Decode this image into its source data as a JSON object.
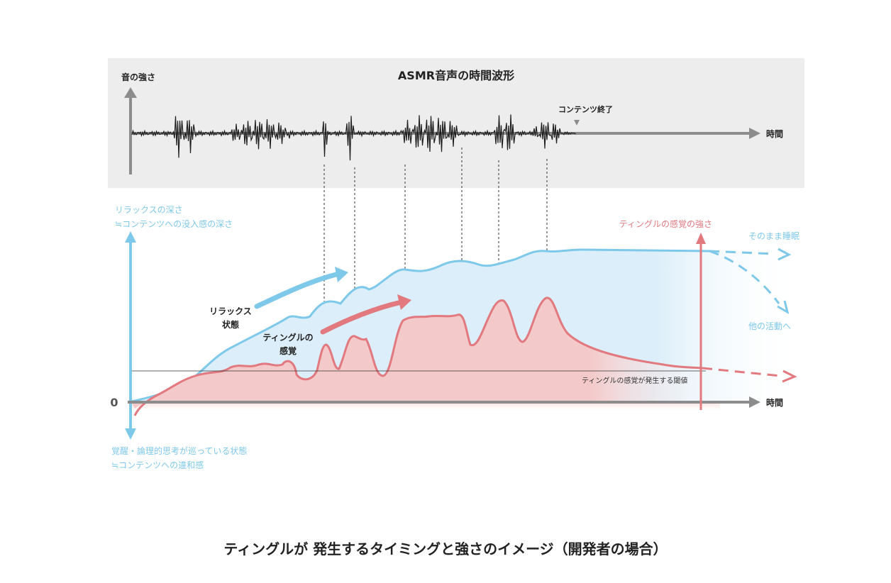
{
  "waveform": {
    "title": "ASMR音声の時間波形",
    "y_label": "音の強さ",
    "x_label": "時間",
    "end_label": "コンテンツ終了"
  },
  "main": {
    "top_axis_label_1": "リラックスの深さ",
    "top_axis_label_2": "≒コンテンツへの没入感の深さ",
    "bottom_axis_label_1": "覚醒・論理的思考が巡っている状態",
    "bottom_axis_label_2": "≒コンテンツへの違和感",
    "zero_label": "0",
    "x_label": "時間",
    "relax_state_1": "リラックス",
    "relax_state_2": "状態",
    "tingle_state_1": "ティングルの",
    "tingle_state_2": "感覚",
    "tingle_strength_label": "ティングルの感覚の強さ",
    "sleep_label": "そのまま睡眠",
    "other_activity_label": "他の活動へ",
    "threshold_label": "ティングルの感覚が発生する閾値"
  },
  "caption": "ティングルが 発生するタイミングと強さのイメージ（開発者の場合）",
  "colors": {
    "relax": "#7ec8ea",
    "relax_fill": "#dbeef9",
    "tingle": "#e1797f",
    "tingle_fill": "#f4c9c9",
    "axis_gray": "#8c8c8c",
    "panel_bg": "#ededed"
  }
}
